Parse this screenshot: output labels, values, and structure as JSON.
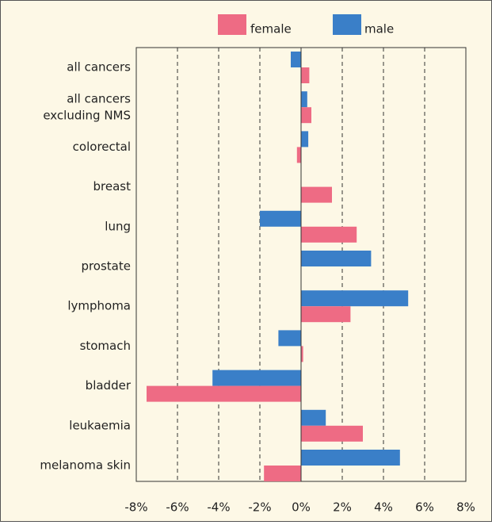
{
  "chart_data": {
    "type": "hbar",
    "categories": [
      "all cancers",
      "all cancers\nexcluding NMS",
      "colorectal",
      "breast",
      "lung",
      "prostate",
      "lymphoma",
      "stomach",
      "bladder",
      "leukaemia",
      "melanoma skin"
    ],
    "series": [
      {
        "name": "male",
        "color": "#3a7fc8",
        "values": [
          -0.5,
          0.3,
          0.35,
          null,
          -2.0,
          3.4,
          5.2,
          -1.1,
          -4.3,
          1.2,
          4.8
        ]
      },
      {
        "name": "female",
        "color": "#ee6b84",
        "values": [
          0.4,
          0.5,
          -0.2,
          1.5,
          2.7,
          null,
          2.4,
          0.1,
          -7.5,
          3.0,
          -1.8
        ]
      }
    ],
    "xlim": [
      -8,
      8
    ],
    "xticks": [
      {
        "value": -8,
        "label": "-8%"
      },
      {
        "value": -6,
        "label": "-6%"
      },
      {
        "value": -4,
        "label": "-4%"
      },
      {
        "value": -2,
        "label": "-2%"
      },
      {
        "value": 0,
        "label": "0%"
      },
      {
        "value": 2,
        "label": "2%"
      },
      {
        "value": 4,
        "label": "4%"
      },
      {
        "value": 6,
        "label": "6%"
      },
      {
        "value": 8,
        "label": "8%"
      }
    ],
    "grid": true,
    "legend": "top"
  }
}
